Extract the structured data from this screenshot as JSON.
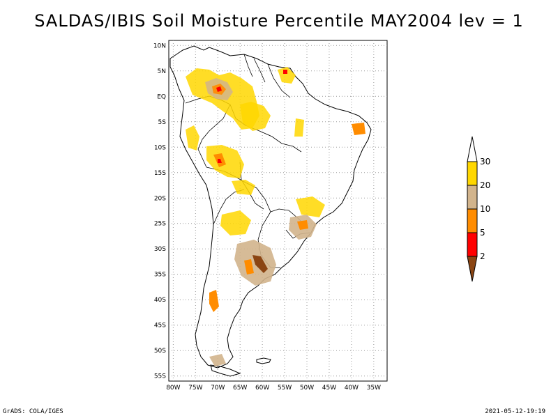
{
  "title": "SALDAS/IBIS Soil Moisture Percentile MAY2004 lev = 1",
  "footer": {
    "left": "GrADS: COLA/IGES",
    "right": "2021-05-12-19:19"
  },
  "map": {
    "lat_labels": [
      "10N",
      "5N",
      "EQ",
      "5S",
      "10S",
      "15S",
      "20S",
      "25S",
      "30S",
      "35S",
      "40S",
      "45S",
      "50S",
      "55S"
    ],
    "lon_labels": [
      "80W",
      "75W",
      "70W",
      "65W",
      "60W",
      "55W",
      "50W",
      "45W",
      "40W",
      "35W"
    ],
    "lat_range": [
      -56,
      11
    ],
    "lon_range": [
      -81,
      -32
    ],
    "grid": "dotted"
  },
  "legend": {
    "labels": [
      "2",
      "5",
      "10",
      "20",
      "30"
    ],
    "colors": [
      "#8b4513",
      "#ff0000",
      "#ff8c00",
      "#d2b48c",
      "#ffd700",
      "#ffffff"
    ]
  },
  "colors": {
    "coast": "#000000",
    "lt2": "#8b4513",
    "p5": "#ff0000",
    "p10": "#ff8c00",
    "p20": "#d2b48c",
    "p30": "#ffd700"
  }
}
